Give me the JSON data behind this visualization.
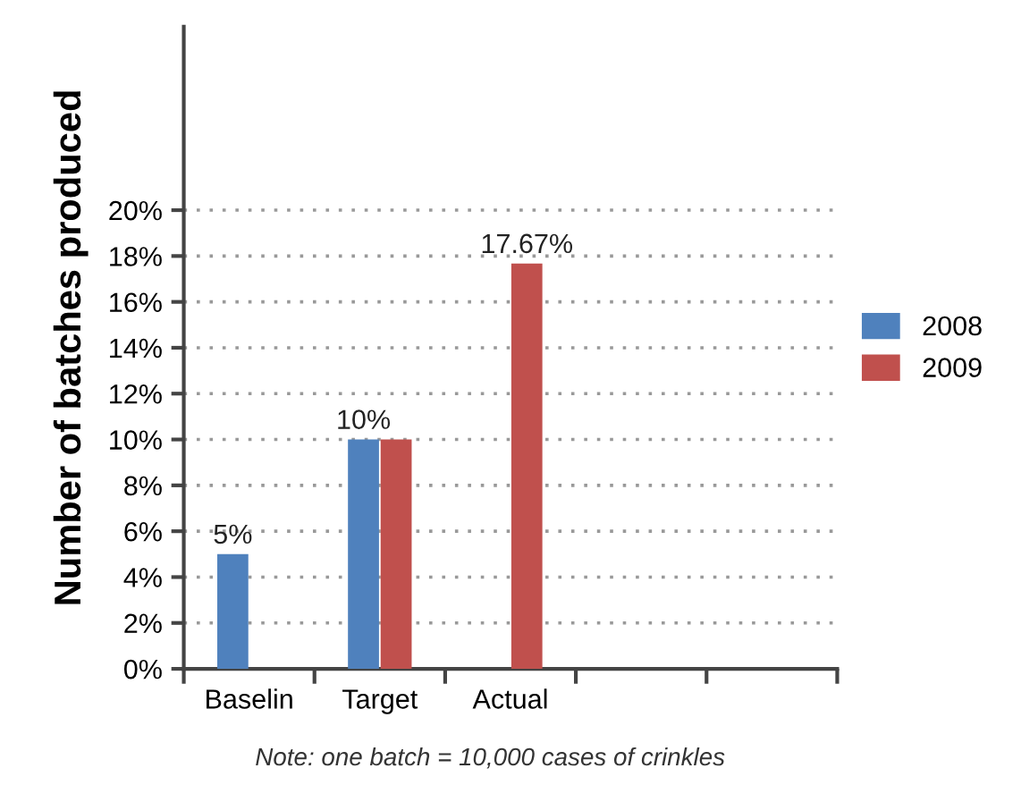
{
  "chart_data": {
    "type": "bar",
    "ylabel": "Number of batches produced",
    "categories": [
      "Baselin",
      "Target",
      "Actual",
      null,
      null
    ],
    "series": [
      {
        "name": "2008",
        "color": "#4f81bd",
        "values": [
          5,
          10,
          null,
          null,
          null
        ],
        "value_labels": [
          "5%",
          "10%",
          null,
          null,
          null
        ]
      },
      {
        "name": "2009",
        "color": "#c0504d",
        "values": [
          null,
          10,
          17.67,
          null,
          null
        ],
        "value_labels": [
          null,
          null,
          "17.67%",
          null,
          null
        ]
      }
    ],
    "ylim": [
      0,
      28
    ],
    "yticks": [
      {
        "value": 0,
        "label": "0%"
      },
      {
        "value": 2,
        "label": "2%"
      },
      {
        "value": 4,
        "label": "4%"
      },
      {
        "value": 6,
        "label": "6%"
      },
      {
        "value": 8,
        "label": "8%"
      },
      {
        "value": 10,
        "label": "10%"
      },
      {
        "value": 12,
        "label": "12%"
      },
      {
        "value": 14,
        "label": "14%"
      },
      {
        "value": 16,
        "label": "16%"
      },
      {
        "value": 18,
        "label": "18%"
      },
      {
        "value": 20,
        "label": "20%"
      }
    ],
    "grid": "y",
    "legend": "right",
    "annotations": [
      "Note: one batch = 10,000 cases of crinkles"
    ]
  }
}
